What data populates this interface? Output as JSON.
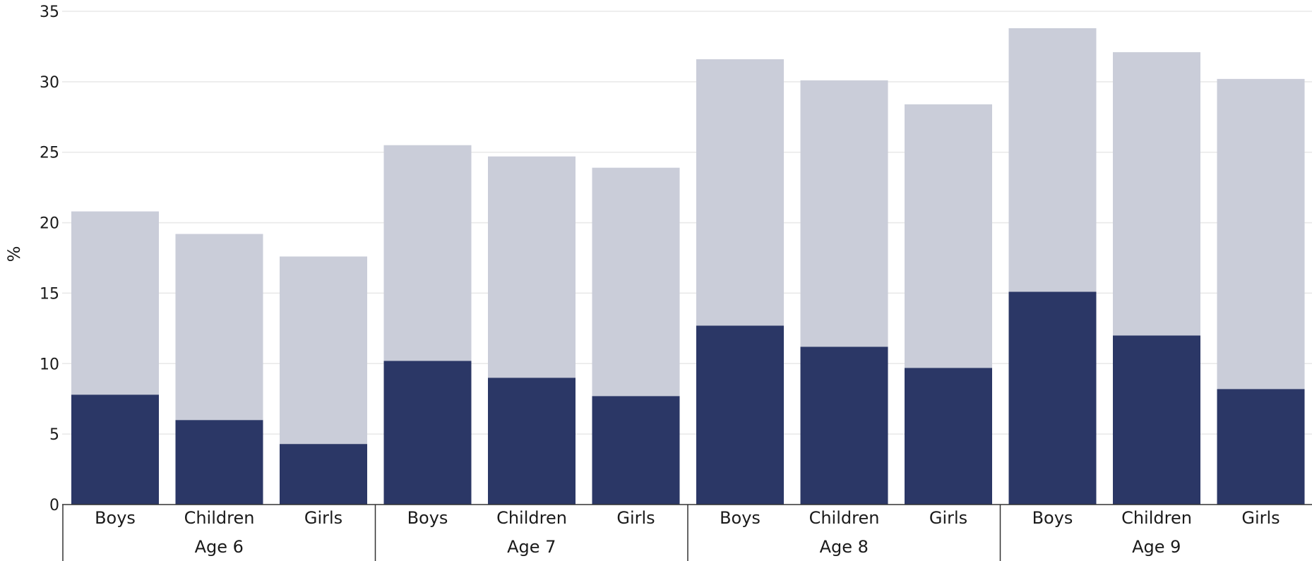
{
  "chart_data": {
    "type": "bar",
    "stacked": true,
    "title": "",
    "xlabel": "",
    "ylabel": "%",
    "ylim": [
      0,
      35
    ],
    "yticks": [
      0,
      5,
      10,
      15,
      20,
      25,
      30,
      35
    ],
    "grid": true,
    "legend": "none",
    "groups": [
      "Age 6",
      "Age 7",
      "Age 8",
      "Age 9"
    ],
    "categories": [
      "Boys",
      "Children",
      "Girls"
    ],
    "series": [
      {
        "color": "#2b3766",
        "values": [
          [
            7.8,
            6.0,
            4.3
          ],
          [
            10.2,
            9.0,
            7.7
          ],
          [
            12.7,
            11.2,
            9.7
          ],
          [
            15.1,
            12.0,
            8.2
          ]
        ]
      },
      {
        "color": "#cacdd9",
        "values": [
          [
            13.0,
            13.2,
            13.3
          ],
          [
            15.3,
            15.7,
            16.2
          ],
          [
            18.9,
            18.9,
            18.7
          ],
          [
            18.7,
            20.1,
            22.0
          ]
        ]
      }
    ],
    "colors": {
      "grid": "#e8e8e8",
      "axis": "#333333"
    }
  }
}
